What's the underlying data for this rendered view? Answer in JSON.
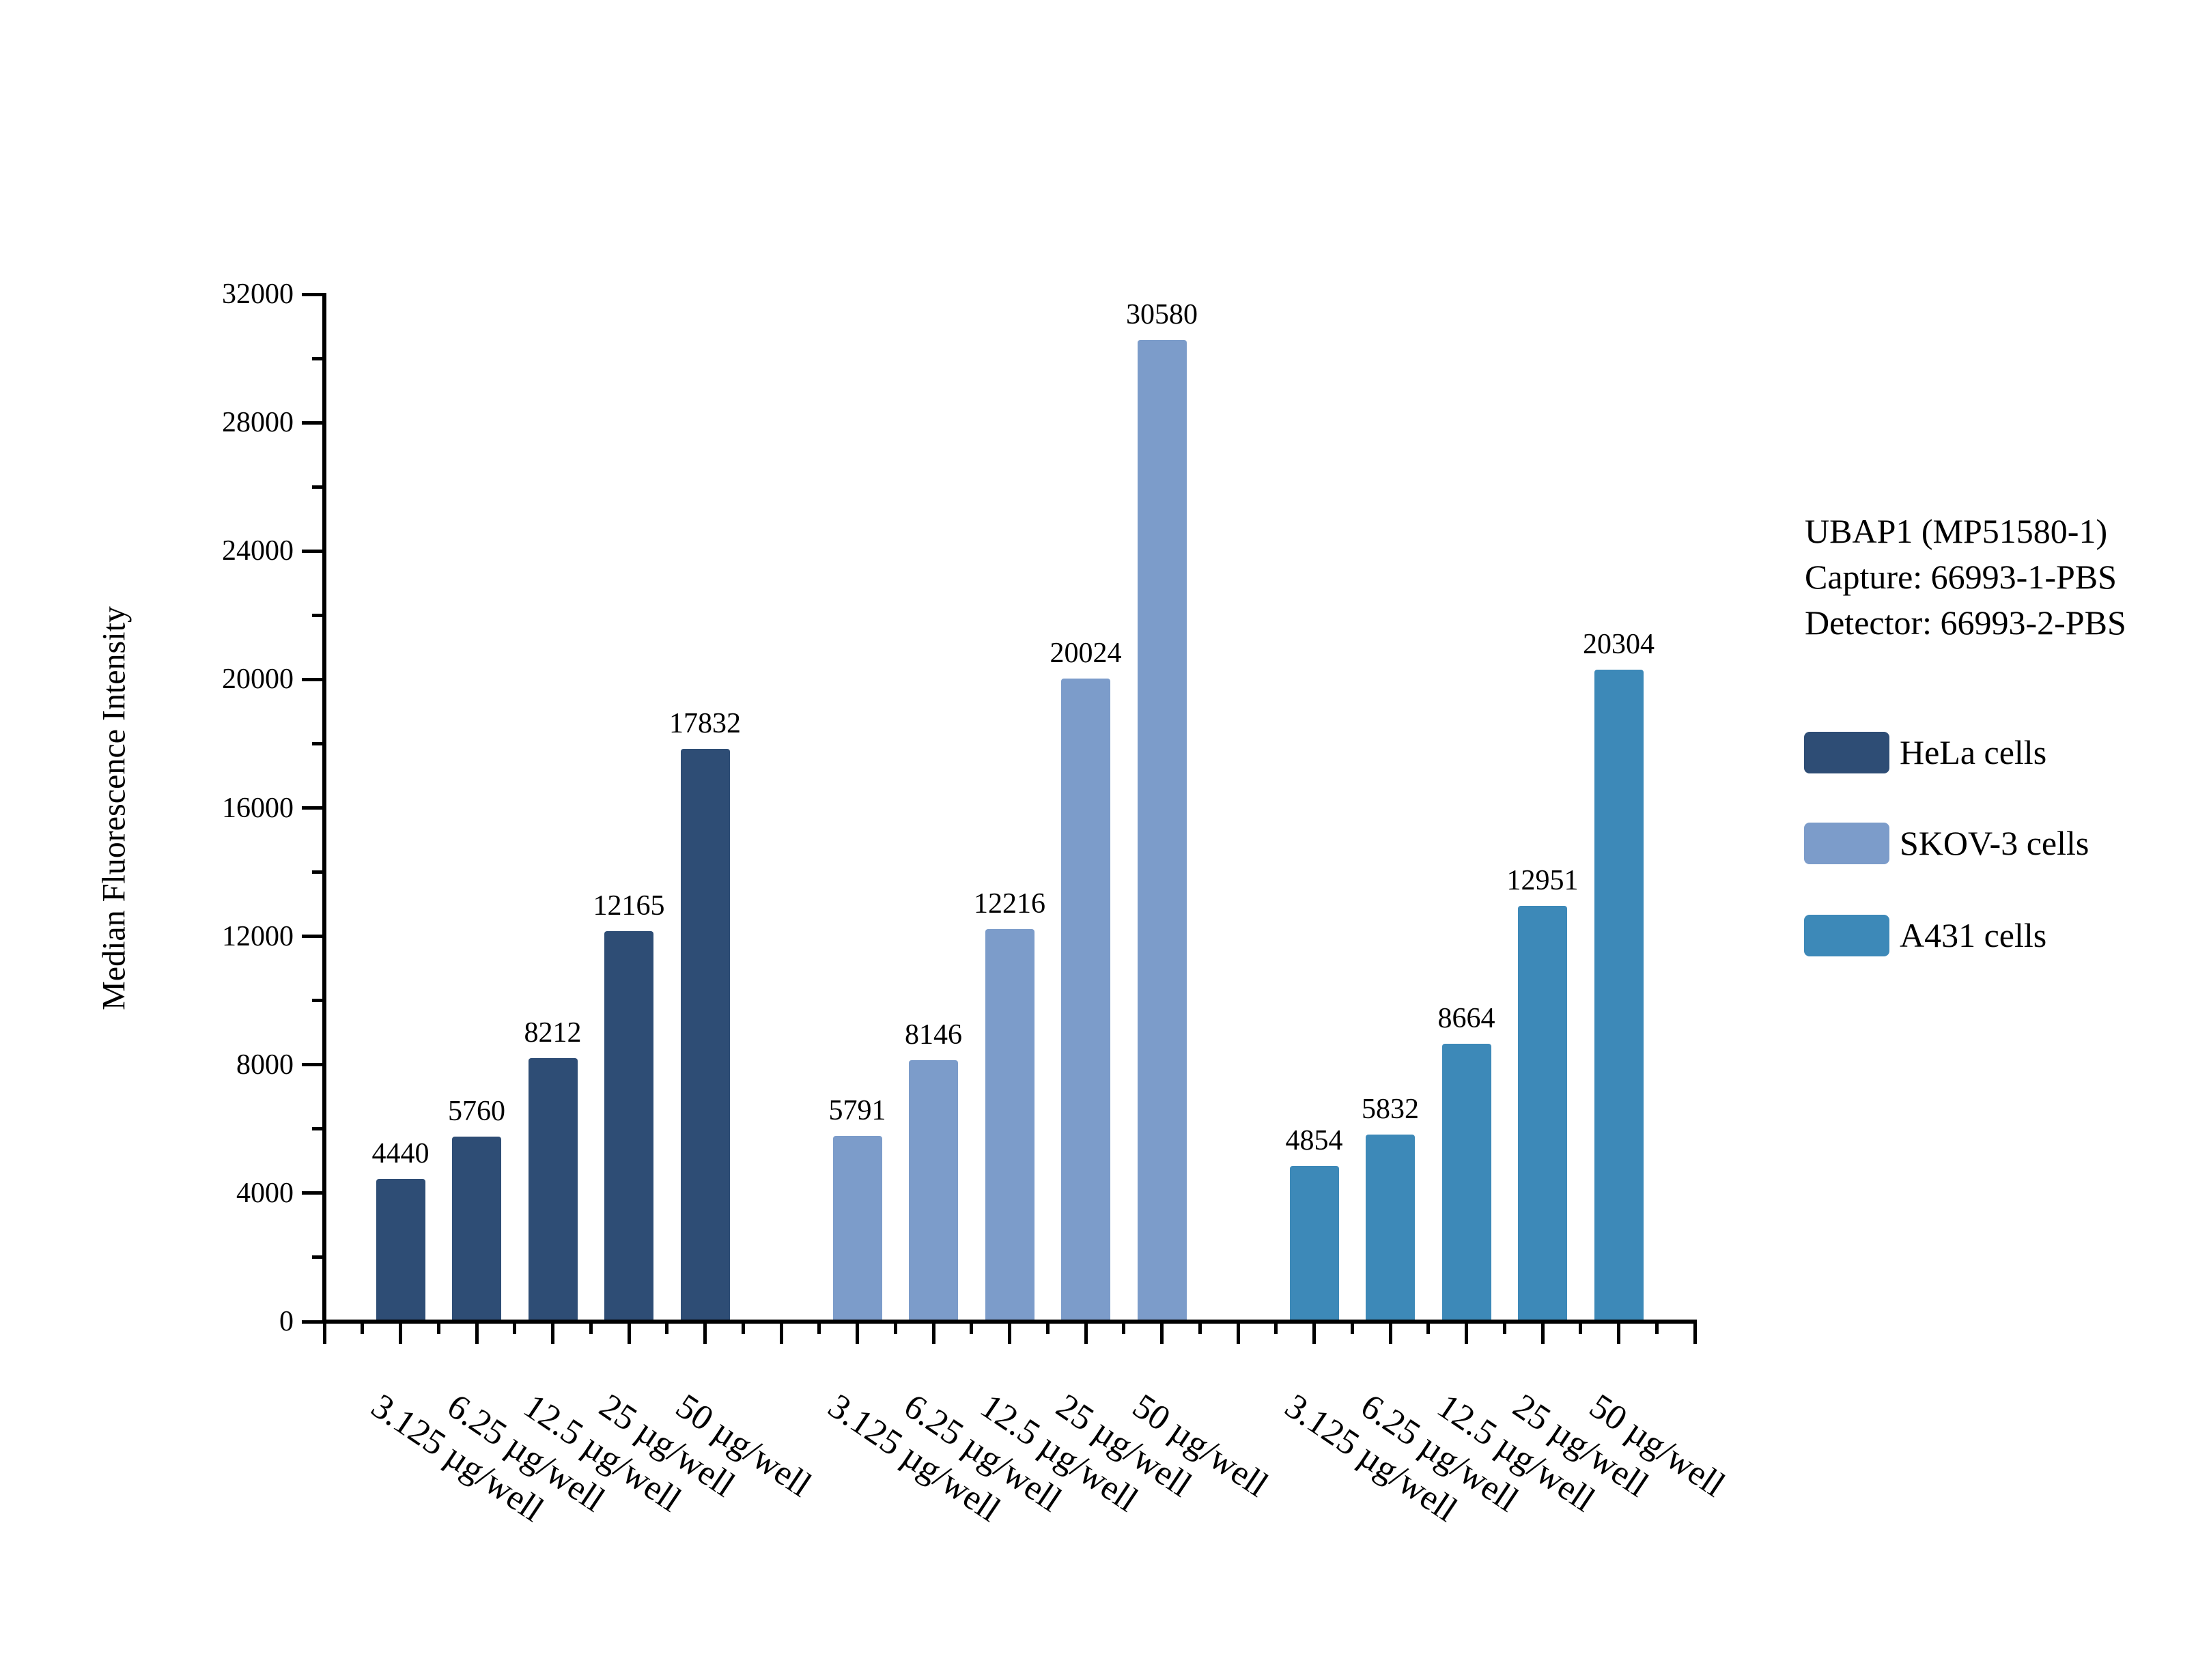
{
  "chart_data": {
    "type": "bar",
    "title_lines": {
      "line1": "UBAP1 (MP51580-1)",
      "line2": "Capture: 66993-1-PBS",
      "line3": "Detector: 66993-2-PBS"
    },
    "ylabel": "Median Fluorescence Intensity",
    "xlabel": "",
    "categories": [
      "3.125 µg/well",
      "6.25 µg/well",
      "12.5 µg/well",
      "25 µg/well",
      "50 µg/well"
    ],
    "series": [
      {
        "name": "HeLa cells",
        "color": "#2E4D75",
        "values": [
          4440,
          5760,
          8212,
          12165,
          17832
        ]
      },
      {
        "name": "SKOV-3 cells",
        "color": "#7C9CCA",
        "values": [
          5791,
          8146,
          12216,
          20024,
          30580
        ]
      },
      {
        "name": "A431 cells",
        "color": "#3D89B8",
        "values": [
          4854,
          5832,
          8664,
          12951,
          20304
        ]
      }
    ],
    "y_axis": {
      "min": 0,
      "max": 32000,
      "major_step": 4000,
      "minor_step": 2000,
      "tick_labels": [
        "0",
        "4000",
        "8000",
        "12000",
        "16000",
        "20000",
        "24000",
        "28000",
        "32000"
      ]
    },
    "bar_value_labels": true,
    "grid": false,
    "legend_position": "right",
    "axis_color": "#000000",
    "text_color": "#000000",
    "background_color": "#FFFFFF"
  }
}
